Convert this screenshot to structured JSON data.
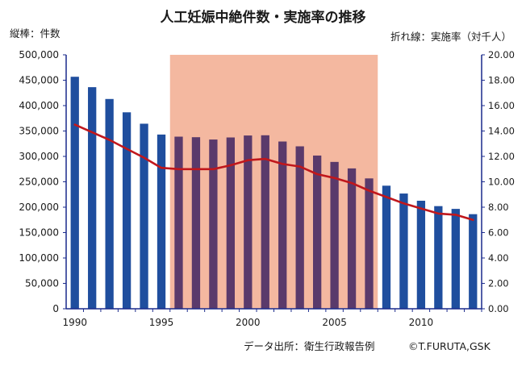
{
  "chart_data": {
    "type": "bar",
    "title": "人工妊娠中絶件数・実施率の推移",
    "left_axis_label": "縦棒：件数",
    "right_axis_label": "折れ線：実施率（対千人）",
    "source_note": "データ出所：衛生行政報告例",
    "copyright": "©T.FURUTA,GSK",
    "x_ticks": [
      "1990",
      "1995",
      "2000",
      "2005",
      "2010"
    ],
    "x_tick_values": [
      1990,
      1995,
      2000,
      2005,
      2010
    ],
    "x_range": [
      1989.5,
      2013.5
    ],
    "y_left_ticks": [
      "0",
      "50,000",
      "100,000",
      "150,000",
      "200,000",
      "250,000",
      "300,000",
      "350,000",
      "400,000",
      "450,000",
      "500,000"
    ],
    "y_left_range": [
      0,
      500000
    ],
    "y_right_ticks": [
      "0.00",
      "2.00",
      "4.00",
      "6.00",
      "8.00",
      "10.00",
      "12.00",
      "14.00",
      "16.00",
      "18.00",
      "20.00"
    ],
    "y_right_range": [
      0,
      20
    ],
    "highlight_band": {
      "from": 1995.5,
      "to": 2007.5,
      "color": "#f4b8a0"
    },
    "colors": {
      "bar": "#1f4e9e",
      "bar_in_band": "#5a3a6b",
      "line": "#c0171c",
      "axis": "#1a2a8c"
    },
    "x": [
      1990,
      1991,
      1992,
      1993,
      1994,
      1995,
      1996,
      1997,
      1998,
      1999,
      2000,
      2001,
      2002,
      2003,
      2004,
      2005,
      2006,
      2007,
      2008,
      2009,
      2010,
      2011,
      2012,
      2013
    ],
    "series": [
      {
        "type": "bar",
        "axis": "left",
        "values": [
          456797,
          436299,
          413032,
          386807,
          364350,
          343024,
          338867,
          337799,
          333220,
          337288,
          341146,
          341588,
          329326,
          319831,
          301673,
          289127,
          276352,
          256672,
          242326,
          226878,
          212694,
          202106,
          196639,
          186253
        ]
      },
      {
        "type": "line",
        "axis": "right",
        "values": [
          14.5,
          13.9,
          13.3,
          12.6,
          11.9,
          11.1,
          11.0,
          11.0,
          11.0,
          11.3,
          11.7,
          11.8,
          11.4,
          11.2,
          10.6,
          10.3,
          9.9,
          9.3,
          8.8,
          8.3,
          7.9,
          7.5,
          7.4,
          7.0
        ]
      }
    ]
  }
}
